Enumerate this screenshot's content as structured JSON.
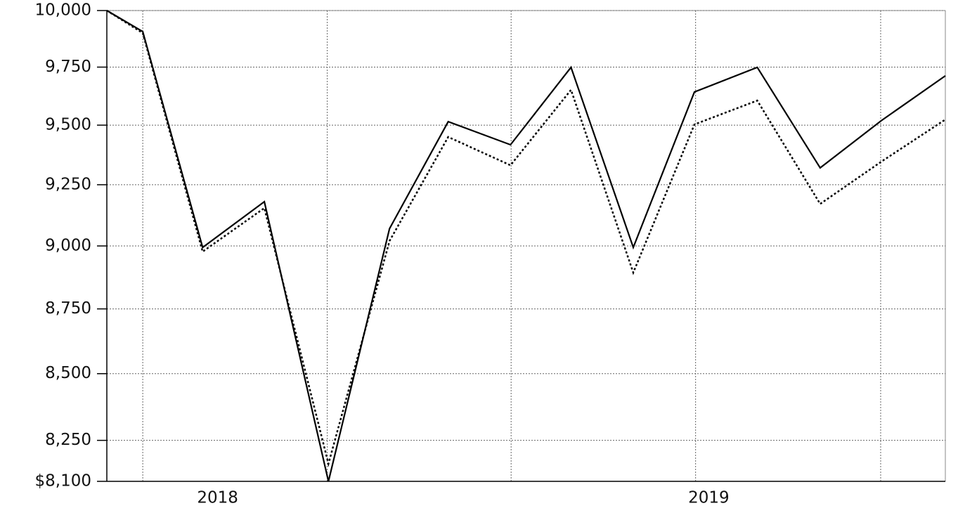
{
  "chart_data": {
    "type": "line",
    "x": [
      0,
      0.6,
      1.6,
      2.63,
      3.7,
      4.72,
      5.7,
      6.74,
      7.75,
      8.79,
      9.81,
      10.86,
      11.91,
      12.93,
      14
    ],
    "series": [
      {
        "color": "#000000",
        "dash": "solid",
        "values": [
          10000,
          9906,
          8994,
          9180,
          8100,
          9070,
          9515,
          9417,
          9749,
          8994,
          9642,
          9749,
          9320,
          9519,
          9712
        ]
      },
      {
        "color": "#000000",
        "dash": "dotted",
        "values": [
          10000,
          9900,
          8977,
          9154,
          8164,
          9020,
          9450,
          9331,
          9651,
          8893,
          9503,
          9605,
          9171,
          9346,
          9524
        ]
      }
    ],
    "xlim": [
      0,
      14
    ],
    "xticks": [
      {
        "value": 1.85,
        "label": "2018"
      },
      {
        "value": 10.05,
        "label": "2019"
      }
    ],
    "xgrid": [
      0.6,
      3.68,
      6.75,
      9.83,
      12.92
    ],
    "ylim": [
      8100,
      10000
    ],
    "ylog": true,
    "yticks": [
      {
        "value": 8100,
        "label": "$8,100"
      },
      {
        "value": 8250,
        "label": "8,250"
      },
      {
        "value": 8500,
        "label": "8,500"
      },
      {
        "value": 8750,
        "label": "8,750"
      },
      {
        "value": 9000,
        "label": "9,000"
      },
      {
        "value": 9250,
        "label": "9,250"
      },
      {
        "value": 9500,
        "label": "9,500"
      },
      {
        "value": 9750,
        "label": "9,750"
      },
      {
        "value": 10000,
        "label": "10,000"
      }
    ],
    "grid": true
  }
}
